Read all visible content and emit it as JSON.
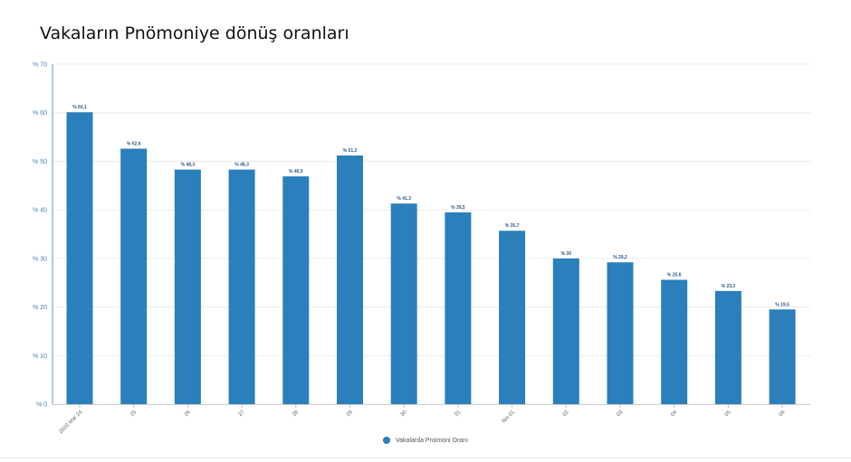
{
  "chart_data": {
    "type": "bar",
    "title": "Vakaların Pnömoniye dönüş oranları",
    "categories": [
      "2020 Mar 24",
      "25",
      "26",
      "27",
      "28",
      "29",
      "30",
      "31",
      "Nis 01",
      "02",
      "03",
      "04",
      "05",
      "06"
    ],
    "series": [
      {
        "name": "Vakalarda Pnömoni Oranı",
        "values": [
          60.1,
          52.6,
          48.3,
          48.3,
          46.9,
          51.2,
          41.3,
          39.5,
          35.7,
          30,
          29.2,
          25.6,
          23.3,
          19.5
        ],
        "value_labels": [
          "% 60,1",
          "% 52,6",
          "% 48,3",
          "% 48,3",
          "% 46,9",
          "% 51,2",
          "% 41,3",
          "% 39,5",
          "% 35,7",
          "% 30",
          "% 29,2",
          "% 25,6",
          "% 23,3",
          "% 19,5"
        ]
      }
    ],
    "y_ticks": [
      "% 0",
      "% 10",
      "% 20",
      "% 30",
      "% 40",
      "% 50",
      "% 60",
      "% 70"
    ],
    "ylim": [
      0,
      70
    ],
    "grid": true,
    "legend_position": "bottom-center",
    "colors": {
      "bar": "#2b7fba",
      "axis": "#5b9bd5",
      "tick_text": "#4a86c0",
      "grid": "#ececec"
    }
  }
}
